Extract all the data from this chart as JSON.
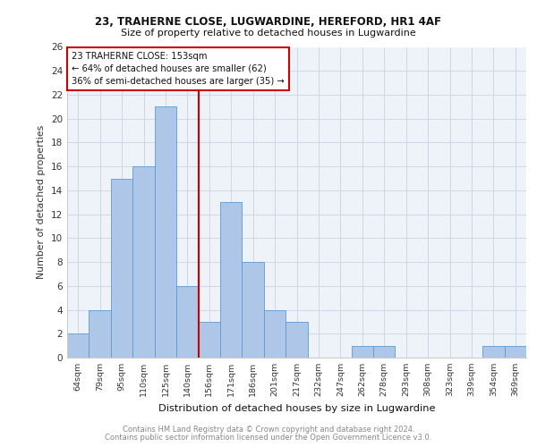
{
  "title1": "23, TRAHERNE CLOSE, LUGWARDINE, HEREFORD, HR1 4AF",
  "title2": "Size of property relative to detached houses in Lugwardine",
  "xlabel": "Distribution of detached houses by size in Lugwardine",
  "ylabel": "Number of detached properties",
  "footnote1": "Contains HM Land Registry data © Crown copyright and database right 2024.",
  "footnote2": "Contains public sector information licensed under the Open Government Licence v3.0.",
  "categories": [
    "64sqm",
    "79sqm",
    "95sqm",
    "110sqm",
    "125sqm",
    "140sqm",
    "156sqm",
    "171sqm",
    "186sqm",
    "201sqm",
    "217sqm",
    "232sqm",
    "247sqm",
    "262sqm",
    "278sqm",
    "293sqm",
    "308sqm",
    "323sqm",
    "339sqm",
    "354sqm",
    "369sqm"
  ],
  "values": [
    2,
    4,
    15,
    16,
    21,
    6,
    3,
    13,
    8,
    4,
    3,
    0,
    0,
    1,
    1,
    0,
    0,
    0,
    0,
    1,
    1
  ],
  "bar_color": "#aec6e8",
  "bar_edge_color": "#5b9bd5",
  "vline_index": 6,
  "vline_color": "#cc0000",
  "annotation_line1": "23 TRAHERNE CLOSE: 153sqm",
  "annotation_line2": "← 64% of detached houses are smaller (62)",
  "annotation_line3": "36% of semi-detached houses are larger (35) →",
  "annotation_box_color": "#cc0000",
  "ylim": [
    0,
    26
  ],
  "yticks": [
    0,
    2,
    4,
    6,
    8,
    10,
    12,
    14,
    16,
    18,
    20,
    22,
    24,
    26
  ],
  "grid_color": "#d0d8e8",
  "background_color": "#eef2f9",
  "fig_bg": "#ffffff"
}
